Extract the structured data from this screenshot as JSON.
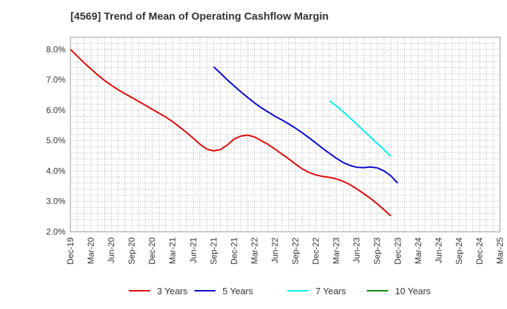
{
  "chart_data": {
    "type": "line",
    "title": "[4569]  Trend of Mean of Operating Cashflow Margin",
    "xlabel": "",
    "ylabel": "",
    "x_ticks": [
      "Dec-19",
      "Mar-20",
      "Jun-20",
      "Sep-20",
      "Dec-20",
      "Mar-21",
      "Jun-21",
      "Sep-21",
      "Dec-21",
      "Mar-22",
      "Jun-22",
      "Sep-22",
      "Dec-22",
      "Mar-23",
      "Jun-23",
      "Sep-23",
      "Dec-23",
      "Mar-24",
      "Jun-24",
      "Sep-24",
      "Dec-24",
      "Mar-25"
    ],
    "y_ticks": [
      "2.0%",
      "3.0%",
      "4.0%",
      "5.0%",
      "6.0%",
      "7.0%",
      "8.0%"
    ],
    "ylim": [
      2.0,
      8.4
    ],
    "grid": true,
    "legend_position": "bottom",
    "series": [
      {
        "name": "3 Years",
        "color": "#dd0000",
        "start_index": 0,
        "values": [
          8.0,
          7.78,
          7.56,
          7.36,
          7.16,
          6.98,
          6.82,
          6.67,
          6.54,
          6.42,
          6.29,
          6.16,
          6.03,
          5.9,
          5.77,
          5.62,
          5.45,
          5.27,
          5.08,
          4.88,
          4.72,
          4.66,
          4.7,
          4.85,
          5.05,
          5.15,
          5.18,
          5.12,
          5.0,
          4.87,
          4.72,
          4.56,
          4.4,
          4.23,
          4.07,
          3.95,
          3.87,
          3.82,
          3.79,
          3.74,
          3.66,
          3.55,
          3.41,
          3.26,
          3.1,
          2.92,
          2.72,
          2.52
        ]
      },
      {
        "name": "5 Years",
        "color": "#0000cc",
        "start_index": 21,
        "values": [
          7.43,
          7.22,
          7.0,
          6.8,
          6.6,
          6.42,
          6.24,
          6.08,
          5.94,
          5.8,
          5.68,
          5.55,
          5.41,
          5.26,
          5.09,
          4.92,
          4.74,
          4.58,
          4.42,
          4.28,
          4.18,
          4.12,
          4.11,
          4.13,
          4.1,
          4.0,
          3.84,
          3.6
        ]
      },
      {
        "name": "7 Years",
        "color": "#00eeee",
        "start_index": 38,
        "values": [
          6.31,
          6.14,
          5.95,
          5.75,
          5.54,
          5.33,
          5.12,
          4.91,
          4.7,
          4.48
        ]
      },
      {
        "name": "10 Years",
        "color": "#008800",
        "start_index": 0,
        "values": []
      }
    ]
  }
}
